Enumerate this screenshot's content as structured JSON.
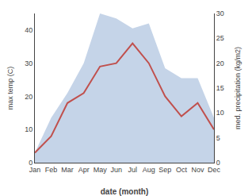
{
  "chart_data": {
    "type": "line",
    "xlabel": "date (month)",
    "ylabel": "max temp (C)",
    "y2label": "med. precipitation (kg/m2)",
    "categories": [
      "Jan",
      "Feb",
      "Mar",
      "Apr",
      "May",
      "Jun",
      "Jul",
      "Aug",
      "Sep",
      "Oct",
      "Nov",
      "Dec"
    ],
    "series": [
      {
        "type": "area",
        "axis": "y2",
        "color": "#c5d4e8",
        "values": [
          2,
          9,
          14,
          20,
          30,
          29,
          27,
          28,
          19,
          17,
          17,
          9
        ]
      },
      {
        "type": "line",
        "color": "#c0504d",
        "values": [
          3,
          8,
          18,
          21,
          29,
          30,
          36,
          30,
          20,
          14,
          18,
          10
        ]
      }
    ],
    "ylim": [
      0,
      45
    ],
    "yticks": [
      0,
      10,
      20,
      30,
      40
    ],
    "y2lim": [
      0,
      30
    ],
    "y2ticks": [
      0,
      5,
      10,
      15,
      20,
      25,
      30
    ],
    "grid": false
  }
}
